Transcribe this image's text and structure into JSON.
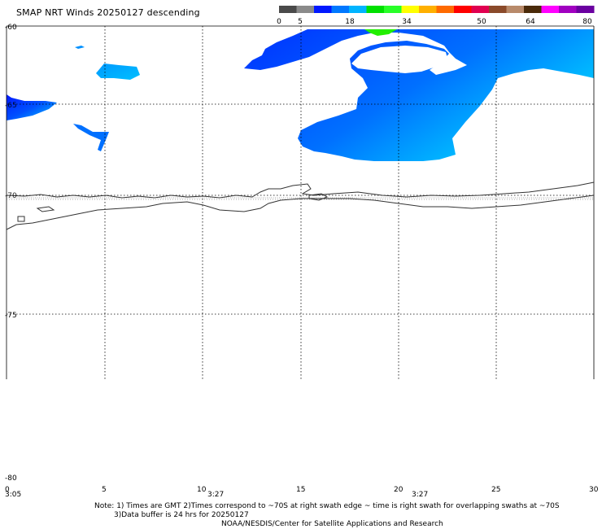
{
  "header": {
    "title": "SMAP NRT Winds  20250127 descending"
  },
  "colorbar": {
    "labels": [
      "0",
      "5",
      "18",
      "34",
      "50",
      "64",
      "80"
    ],
    "colors": [
      "#4a4a4a",
      "#8a8a8a",
      "#0018ff",
      "#0078ff",
      "#00b4ff",
      "#00e000",
      "#28ff28",
      "#ffff00",
      "#ffb000",
      "#ff6a00",
      "#ff0000",
      "#e00050",
      "#8a4a2a",
      "#b88a6a",
      "#4a2a0a",
      "#ff00ff",
      "#a000c0",
      "#6a00a0"
    ]
  },
  "axes": {
    "lat_labels": [
      "-60",
      "-65",
      "-70",
      "-75",
      "-80"
    ],
    "lon_labels": [
      "0",
      "5",
      "10",
      "15",
      "20",
      "25",
      "30"
    ],
    "time_labels": [
      "3:05",
      "3:27",
      "3:27"
    ]
  },
  "notes": {
    "line1": "Note: 1) Times are GMT 2)Times correspond to ~70S at right swath edge ~ time is right swath for overlapping swaths at ~70S",
    "line2": "3)Data buffer is 24 hrs for 20250127",
    "line3": "NOAA/NESDIS/Center for Satellite Applications and Research"
  }
}
